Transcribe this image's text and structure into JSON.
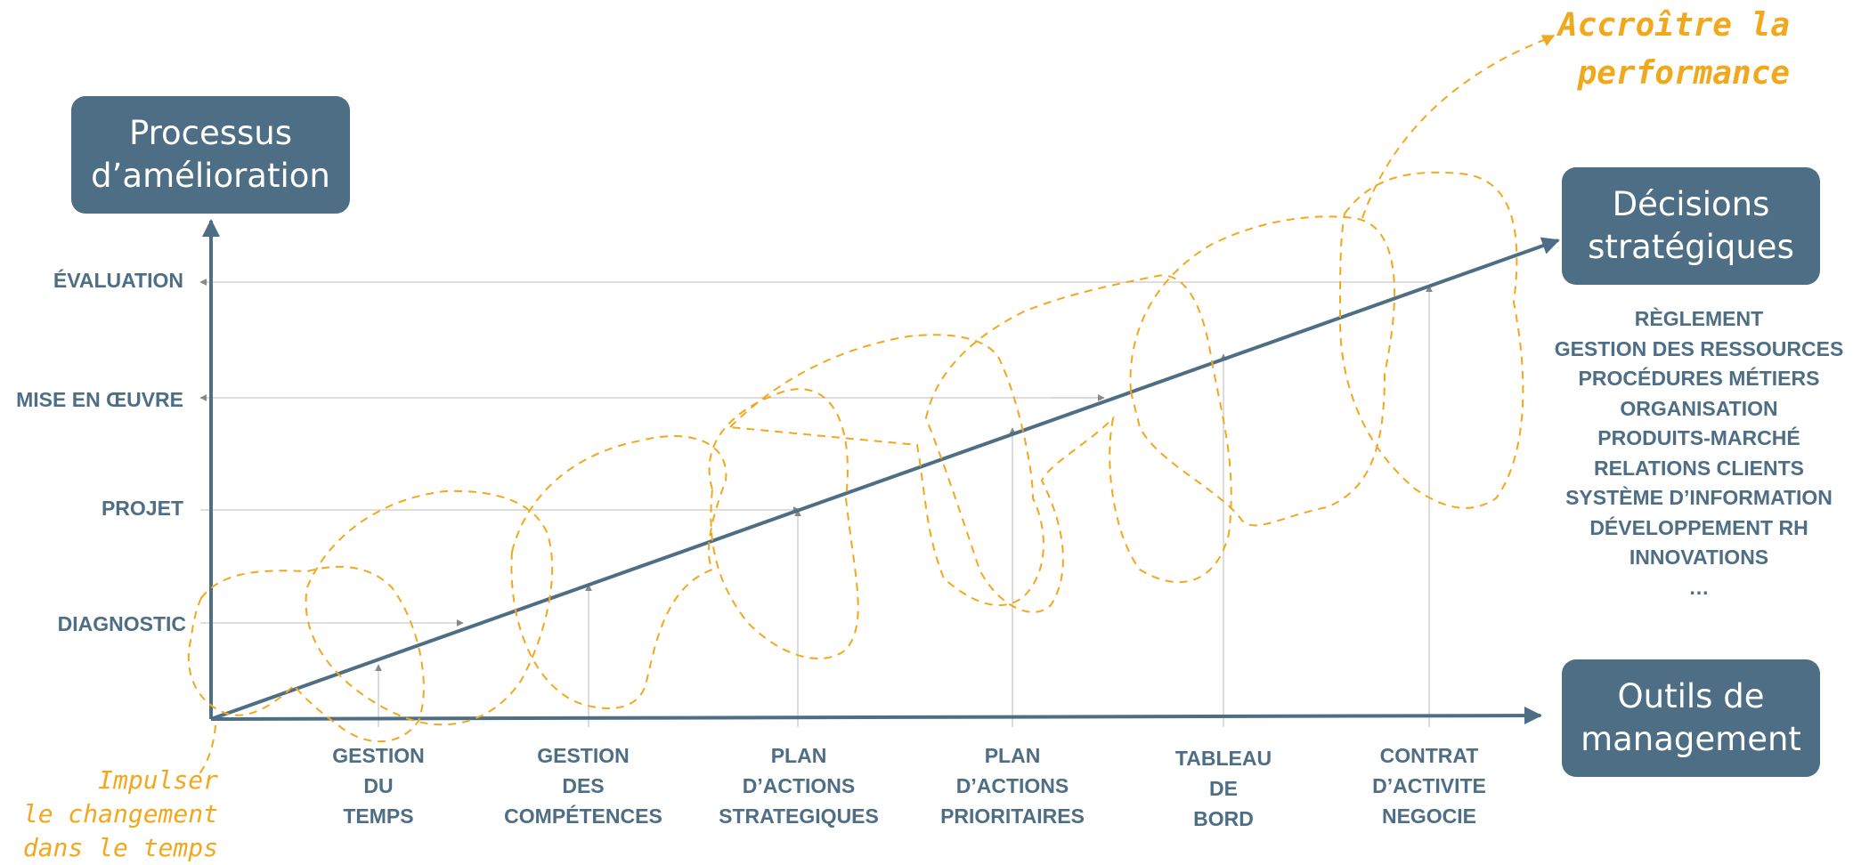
{
  "diagram": {
    "y_axis_title": [
      "Processus",
      "d’amélioration"
    ],
    "decisions_title": [
      "Décisions",
      "stratégiques"
    ],
    "tools_title": [
      "Outils de",
      "management"
    ],
    "y_levels": [
      "ÉVALUATION",
      "MISE EN ŒUVRE",
      "PROJET",
      "DIAGNOSTIC"
    ],
    "tools": [
      {
        "lines": [
          "GESTION",
          "DU",
          "TEMPS"
        ]
      },
      {
        "lines": [
          "GESTION",
          "DES",
          "COMPÉTENCES"
        ]
      },
      {
        "lines": [
          "PLAN",
          "D’ACTIONS",
          "STRATEGIQUES"
        ]
      },
      {
        "lines": [
          "PLAN",
          "D’ACTIONS",
          "PRIORITAIRES"
        ]
      },
      {
        "lines": [
          "TABLEAU",
          "DE",
          "BORD"
        ]
      },
      {
        "lines": [
          "CONTRAT",
          "D’ACTIVITE",
          "NEGOCIE"
        ]
      }
    ],
    "decisions": [
      "RÈGLEMENT",
      "GESTION DES RESSOURCES",
      "PROCÉDURES MÉTIERS",
      "ORGANISATION",
      "PRODUITS-MARCHÉ",
      "RELATIONS CLIENTS",
      "SYSTÈME D’INFORMATION",
      "DÉVELOPPEMENT RH",
      "INNOVATIONS",
      "…"
    ],
    "note_top": [
      "Accroître la",
      "performance"
    ],
    "note_bottom": [
      "Impulser",
      "le changement",
      "dans le temps"
    ]
  },
  "colors": {
    "box": "#4d6e85",
    "text": "#4d6e85",
    "dashed": "#f2a81d",
    "arrow": "#8a8a8a",
    "guide": "#c8c8c8"
  }
}
